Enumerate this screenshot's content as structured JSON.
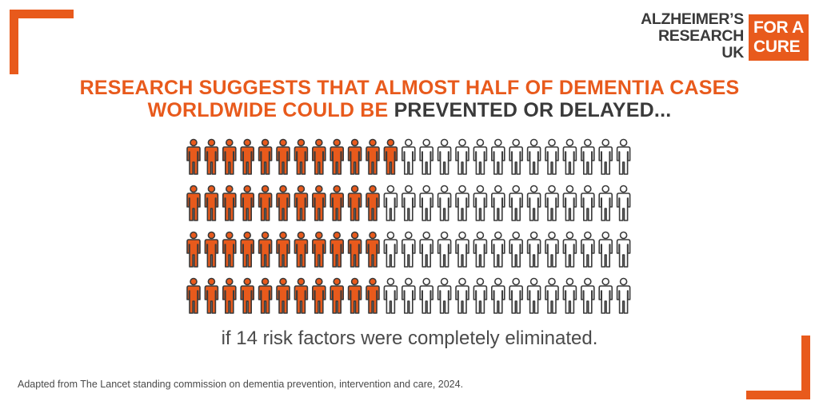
{
  "logo": {
    "org_lines": [
      "ALZHEIMER’S",
      "RESEARCH",
      "UK"
    ],
    "badge_lines": [
      "FOR A",
      "CURE"
    ]
  },
  "headline": {
    "part_orange": "RESEARCH SUGGESTS THAT ALMOST HALF OF DEMENTIA CASES WORLDWIDE COULD BE",
    "part_dark": "PREVENTED OR DELAYED..."
  },
  "pictogram": {
    "rows": 4,
    "per_row": 25,
    "highlighted_per_row": [
      12,
      11,
      11,
      11
    ],
    "highlight_color": "#e85a1c",
    "outline_color": "#3a3a3a",
    "empty_color": "#ffffff"
  },
  "caption": "if 14 risk factors were completely eliminated.",
  "source": "Adapted from The Lancet standing commission on dementia prevention, intervention and care, 2024.",
  "colors": {
    "accent": "#e85a1c",
    "text_dark": "#3a3a3a"
  }
}
